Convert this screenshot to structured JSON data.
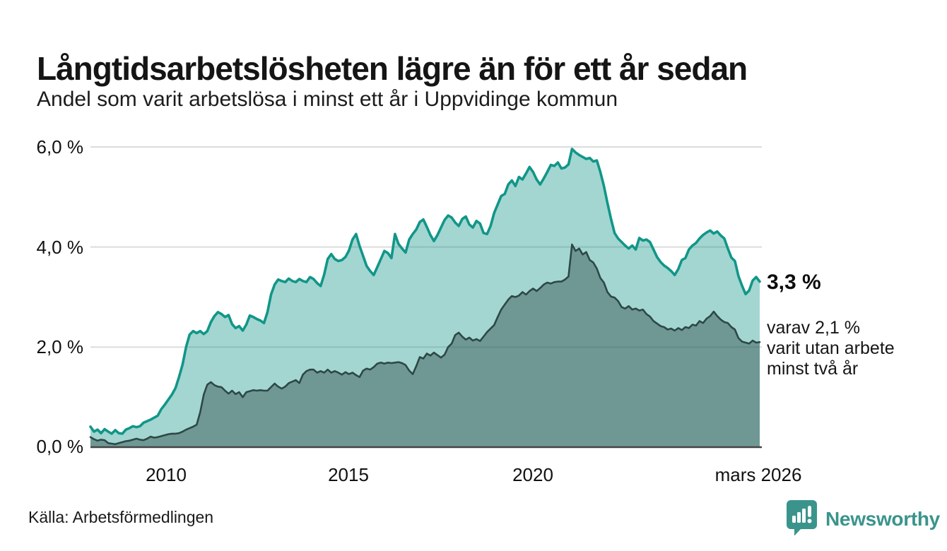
{
  "header": {
    "title": "Långtidsarbetslösheten lägre än för ett år sedan",
    "subtitle": "Andel som varit arbetslösa i minst ett år i Uppvidinge kommun"
  },
  "chart_data": {
    "type": "area",
    "title": "Långtidsarbetslösheten lägre än för ett år sedan",
    "subtitle": "Andel som varit arbetslösa i minst ett år i Uppvidinge kommun",
    "unit": "%",
    "grid": "horizontal",
    "x_axis": {
      "tick_labels": [
        "2010",
        "2015",
        "2020",
        "mars 2026"
      ],
      "tick_positions": [
        2010,
        2015,
        2020,
        2026.15
      ],
      "range": [
        2007.94,
        2026.15
      ]
    },
    "y_axis": {
      "tick_labels": [
        "0,0 %",
        "2,0 %",
        "4,0 %",
        "6,0 %"
      ],
      "tick_values": [
        0,
        2,
        4,
        6
      ],
      "range": [
        0,
        6.2
      ]
    },
    "t_start": 2007.94,
    "t_step": 0.09635,
    "series": [
      {
        "name": "Andel arbetslösa minst ett år",
        "color": "#119688",
        "fill": "rgba(17,150,136,0.39)",
        "line_width": 3.6,
        "end_value": 3.3,
        "end_label": "3,3 %",
        "values": [
          0.41,
          0.31,
          0.35,
          0.28,
          0.36,
          0.31,
          0.27,
          0.34,
          0.28,
          0.27,
          0.35,
          0.38,
          0.42,
          0.4,
          0.42,
          0.49,
          0.52,
          0.55,
          0.59,
          0.63,
          0.76,
          0.85,
          0.95,
          1.05,
          1.18,
          1.4,
          1.65,
          2.0,
          2.25,
          2.32,
          2.28,
          2.32,
          2.26,
          2.32,
          2.5,
          2.62,
          2.7,
          2.66,
          2.6,
          2.64,
          2.46,
          2.38,
          2.42,
          2.33,
          2.45,
          2.63,
          2.6,
          2.56,
          2.53,
          2.48,
          2.7,
          3.05,
          3.25,
          3.35,
          3.32,
          3.3,
          3.37,
          3.32,
          3.3,
          3.36,
          3.32,
          3.3,
          3.4,
          3.36,
          3.28,
          3.22,
          3.45,
          3.76,
          3.86,
          3.76,
          3.72,
          3.74,
          3.8,
          3.93,
          4.15,
          4.26,
          4.02,
          3.82,
          3.62,
          3.52,
          3.44,
          3.6,
          3.76,
          3.92,
          3.88,
          3.78,
          4.26,
          4.06,
          3.97,
          3.89,
          4.15,
          4.26,
          4.35,
          4.5,
          4.55,
          4.4,
          4.24,
          4.12,
          4.24,
          4.39,
          4.54,
          4.63,
          4.59,
          4.49,
          4.42,
          4.56,
          4.61,
          4.45,
          4.39,
          4.52,
          4.47,
          4.28,
          4.26,
          4.42,
          4.68,
          4.85,
          5.02,
          5.06,
          5.25,
          5.33,
          5.22,
          5.4,
          5.35,
          5.47,
          5.6,
          5.5,
          5.35,
          5.25,
          5.37,
          5.5,
          5.64,
          5.62,
          5.69,
          5.57,
          5.59,
          5.65,
          5.96,
          5.89,
          5.84,
          5.8,
          5.76,
          5.78,
          5.71,
          5.73,
          5.5,
          5.22,
          4.88,
          4.56,
          4.28,
          4.17,
          4.1,
          4.03,
          3.97,
          4.03,
          3.95,
          4.18,
          4.13,
          4.15,
          4.1,
          3.95,
          3.8,
          3.7,
          3.63,
          3.58,
          3.52,
          3.44,
          3.56,
          3.74,
          3.78,
          3.95,
          4.03,
          4.08,
          4.17,
          4.24,
          4.29,
          4.33,
          4.27,
          4.31,
          4.23,
          4.17,
          3.97,
          3.79,
          3.72,
          3.42,
          3.23,
          3.06,
          3.13,
          3.33,
          3.4,
          3.31
        ]
      },
      {
        "name": "varav arbetslösa minst två år",
        "color": "#2d4846",
        "fill": "rgba(33,60,58,0.40)",
        "line_width": 2.6,
        "end_value": 2.1,
        "end_label": "varav 2,1 % varit utan arbete minst två år",
        "values": [
          0.2,
          0.16,
          0.13,
          0.15,
          0.14,
          0.08,
          0.07,
          0.06,
          0.08,
          0.1,
          0.12,
          0.13,
          0.15,
          0.17,
          0.15,
          0.14,
          0.17,
          0.21,
          0.19,
          0.2,
          0.22,
          0.24,
          0.26,
          0.27,
          0.27,
          0.28,
          0.31,
          0.35,
          0.38,
          0.41,
          0.45,
          0.7,
          1.05,
          1.25,
          1.3,
          1.24,
          1.21,
          1.2,
          1.13,
          1.07,
          1.13,
          1.06,
          1.1,
          1.0,
          1.1,
          1.12,
          1.14,
          1.13,
          1.14,
          1.13,
          1.13,
          1.2,
          1.27,
          1.21,
          1.17,
          1.21,
          1.28,
          1.31,
          1.34,
          1.28,
          1.45,
          1.52,
          1.55,
          1.55,
          1.49,
          1.52,
          1.49,
          1.55,
          1.49,
          1.52,
          1.49,
          1.45,
          1.5,
          1.46,
          1.49,
          1.44,
          1.4,
          1.53,
          1.57,
          1.55,
          1.6,
          1.67,
          1.69,
          1.67,
          1.69,
          1.68,
          1.69,
          1.7,
          1.68,
          1.64,
          1.53,
          1.46,
          1.62,
          1.8,
          1.77,
          1.87,
          1.83,
          1.89,
          1.84,
          1.79,
          1.85,
          2.0,
          2.07,
          2.24,
          2.29,
          2.21,
          2.15,
          2.19,
          2.13,
          2.16,
          2.12,
          2.21,
          2.3,
          2.37,
          2.44,
          2.6,
          2.75,
          2.85,
          2.95,
          3.02,
          3.0,
          3.03,
          3.1,
          3.05,
          3.12,
          3.17,
          3.12,
          3.18,
          3.25,
          3.29,
          3.27,
          3.3,
          3.31,
          3.31,
          3.35,
          3.41,
          4.05,
          3.92,
          3.97,
          3.85,
          3.9,
          3.74,
          3.69,
          3.57,
          3.38,
          3.29,
          3.1,
          3.01,
          2.99,
          2.92,
          2.8,
          2.77,
          2.82,
          2.75,
          2.77,
          2.73,
          2.75,
          2.66,
          2.61,
          2.52,
          2.47,
          2.42,
          2.4,
          2.35,
          2.37,
          2.33,
          2.38,
          2.34,
          2.4,
          2.38,
          2.45,
          2.43,
          2.52,
          2.48,
          2.57,
          2.62,
          2.71,
          2.62,
          2.55,
          2.5,
          2.48,
          2.4,
          2.35,
          2.18,
          2.11,
          2.09,
          2.07,
          2.13,
          2.09,
          2.1
        ]
      }
    ],
    "colors": {
      "outer_line": "#119688",
      "outer_fill": "#a7d6d0",
      "inner_line": "#2d4846",
      "inner_fill": "#7a9b96",
      "gridline": "#dcdcdc",
      "baseline": "#454545"
    }
  },
  "annotations": {
    "value_label": "3,3 %",
    "sub_label_lines": [
      "varav 2,1 %",
      "varit utan arbete",
      "minst två år"
    ]
  },
  "footer": {
    "source": "Källa: Arbetsförmedlingen",
    "brand": "Newsworthy",
    "brand_color": "#3a948c"
  }
}
